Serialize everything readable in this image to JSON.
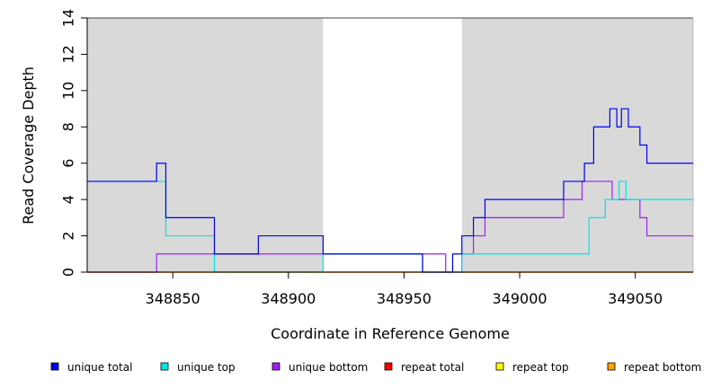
{
  "chart_data": {
    "type": "line",
    "xlabel": "Coordinate in Reference Genome",
    "ylabel": "Read Coverage Depth",
    "xlim": [
      348813,
      349075
    ],
    "ylim": [
      0,
      14
    ],
    "x_ticks": [
      348850,
      348900,
      348950,
      349000,
      349050
    ],
    "y_ticks": [
      0,
      2,
      4,
      6,
      8,
      10,
      12,
      14
    ],
    "grid": false,
    "legend_position": "bottom",
    "shaded_regions": [
      {
        "x_start": 348813,
        "x_end": 348915,
        "color": "#d9d9d9"
      },
      {
        "x_start": 348975,
        "x_end": 349075,
        "color": "#d9d9d9"
      }
    ],
    "series": [
      {
        "name": "unique total",
        "color": "#0000ee",
        "x": [
          348813,
          348843,
          348847,
          348868,
          348887,
          348915,
          348958,
          348971,
          348975,
          348980,
          348985,
          349019,
          349028,
          349032,
          349039,
          349042,
          349044,
          349047,
          349052,
          349055,
          349075
        ],
        "y": [
          5,
          6,
          3,
          1,
          2,
          1,
          0,
          1,
          2,
          3,
          4,
          5,
          6,
          8,
          9,
          8,
          9,
          8,
          7,
          6,
          6
        ]
      },
      {
        "name": "unique top",
        "color": "#00e5e5",
        "x": [
          348813,
          348847,
          348868,
          348887,
          348915,
          348958,
          348975,
          349030,
          349037,
          349043,
          349046,
          349055,
          349075
        ],
        "y": [
          5,
          2,
          0,
          0,
          1,
          0,
          1,
          3,
          4,
          5,
          4,
          4,
          4
        ]
      },
      {
        "name": "unique bottom",
        "color": "#a020f0",
        "x": [
          348813,
          348843,
          348915,
          348968,
          348975,
          348980,
          348985,
          349019,
          349027,
          349040,
          349052,
          349055,
          349075
        ],
        "y": [
          0,
          1,
          1,
          0,
          1,
          2,
          3,
          4,
          5,
          4,
          3,
          2,
          2
        ]
      },
      {
        "name": "repeat total",
        "color": "#ff0000",
        "x": [
          348813,
          349075
        ],
        "y": [
          0,
          0
        ]
      },
      {
        "name": "repeat top",
        "color": "#ffff00",
        "x": [
          348813,
          349075
        ],
        "y": [
          0,
          0
        ]
      },
      {
        "name": "repeat bottom",
        "color": "#ffa500",
        "x": [
          348813,
          349075
        ],
        "y": [
          0,
          0
        ]
      }
    ]
  }
}
